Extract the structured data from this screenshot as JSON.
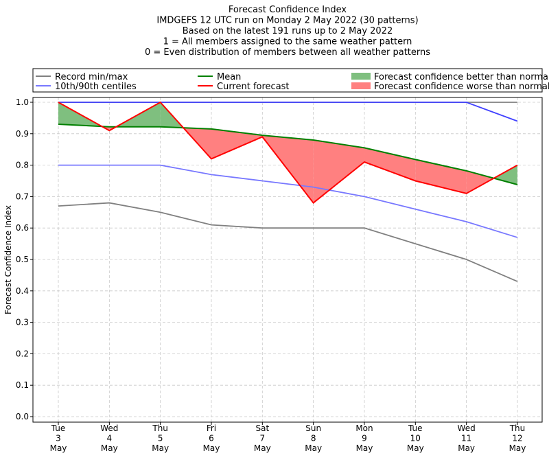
{
  "chart_data": {
    "type": "line",
    "title_lines": [
      "Forecast Confidence Index",
      "IMDGEFS 12 UTC run on Monday 2 May 2022 (30 patterns)",
      "Based on the latest 191 runs up to 2 May 2022",
      "1 = All members assigned to the same weather pattern",
      "0 = Even distribution of members between all weather patterns"
    ],
    "ylabel": "Forecast Confidence Index",
    "ylim": [
      0,
      1
    ],
    "yticks": [
      "0.0",
      "0.1",
      "0.2",
      "0.3",
      "0.4",
      "0.5",
      "0.6",
      "0.7",
      "0.8",
      "0.9",
      "1.0"
    ],
    "categories": [
      [
        "Tue",
        "3",
        "May"
      ],
      [
        "Wed",
        "4",
        "May"
      ],
      [
        "Thu",
        "5",
        "May"
      ],
      [
        "Fri",
        "6",
        "May"
      ],
      [
        "Sat",
        "7",
        "May"
      ],
      [
        "Sun",
        "8",
        "May"
      ],
      [
        "Mon",
        "9",
        "May"
      ],
      [
        "Tue",
        "10",
        "May"
      ],
      [
        "Wed",
        "11",
        "May"
      ],
      [
        "Thu",
        "12",
        "May"
      ]
    ],
    "grid": true,
    "legend_position": "top",
    "legend": [
      {
        "label": "Record min/max",
        "color": "#808080",
        "kind": "line"
      },
      {
        "label": "10th/90th centiles",
        "color": "#7878ff",
        "kind": "line"
      },
      {
        "label": "Mean",
        "color": "#008000",
        "kind": "line"
      },
      {
        "label": "Current forecast",
        "color": "#ff0000",
        "kind": "line"
      },
      {
        "label": "Forecast confidence better than normal",
        "color": "#7fbf7f",
        "kind": "patch"
      },
      {
        "label": "Forecast confidence worse than normal",
        "color": "#ff8080",
        "kind": "patch"
      }
    ],
    "series": [
      {
        "name": "Record min",
        "color": "#808080",
        "values": [
          0.67,
          0.68,
          0.65,
          0.61,
          0.6,
          0.6,
          0.6,
          0.55,
          0.5,
          0.43
        ]
      },
      {
        "name": "Record max",
        "color": "#808080",
        "values": [
          1.0,
          1.0,
          1.0,
          1.0,
          1.0,
          1.0,
          1.0,
          1.0,
          1.0,
          1.0
        ]
      },
      {
        "name": "10th centile",
        "color": "#7878ff",
        "values": [
          0.8,
          0.8,
          0.8,
          0.77,
          0.75,
          0.73,
          0.7,
          0.66,
          0.62,
          0.57
        ]
      },
      {
        "name": "90th centile",
        "color": "#4040ff",
        "values": [
          1.0,
          1.0,
          1.0,
          1.0,
          1.0,
          1.0,
          1.0,
          1.0,
          1.0,
          0.94
        ]
      },
      {
        "name": "Mean",
        "color": "#008000",
        "values": [
          0.93,
          0.922,
          0.922,
          0.915,
          0.895,
          0.88,
          0.855,
          0.818,
          0.782,
          0.738
        ]
      },
      {
        "name": "Current forecast",
        "color": "#ff0000",
        "values": [
          1.0,
          0.91,
          1.0,
          0.82,
          0.89,
          0.68,
          0.81,
          0.75,
          0.71,
          0.8
        ]
      }
    ],
    "fill_colors": {
      "better": "#7fbf7f",
      "worse": "#ff8080"
    }
  }
}
